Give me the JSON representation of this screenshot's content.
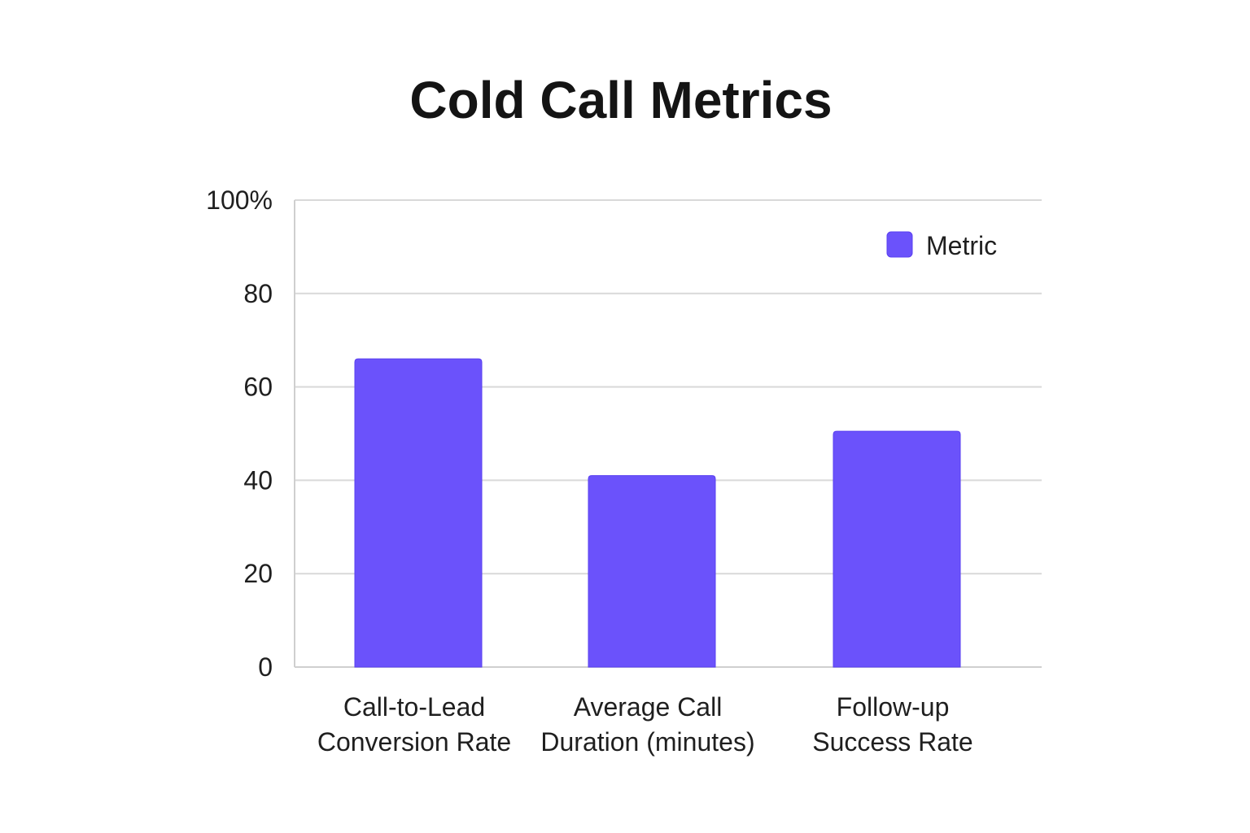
{
  "chart_data": {
    "type": "bar",
    "title": "Cold Call Metrics",
    "xlabel": "",
    "ylabel": "",
    "categories": [
      [
        "Call-to-Lead",
        "Conversion Rate"
      ],
      [
        "Average Call",
        "Duration (minutes)"
      ],
      [
        "Follow-up",
        "Success Rate"
      ]
    ],
    "series": [
      {
        "name": "Metric",
        "values": [
          66,
          41,
          50.5
        ],
        "color": "#6b52fb"
      }
    ],
    "ylim": [
      0,
      100
    ],
    "yticks": [
      0,
      20,
      40,
      60,
      80,
      100
    ],
    "ytick_labels": [
      "0",
      "20",
      "40",
      "60",
      "80",
      "100%"
    ],
    "grid": true,
    "legend_position": "top-right"
  }
}
